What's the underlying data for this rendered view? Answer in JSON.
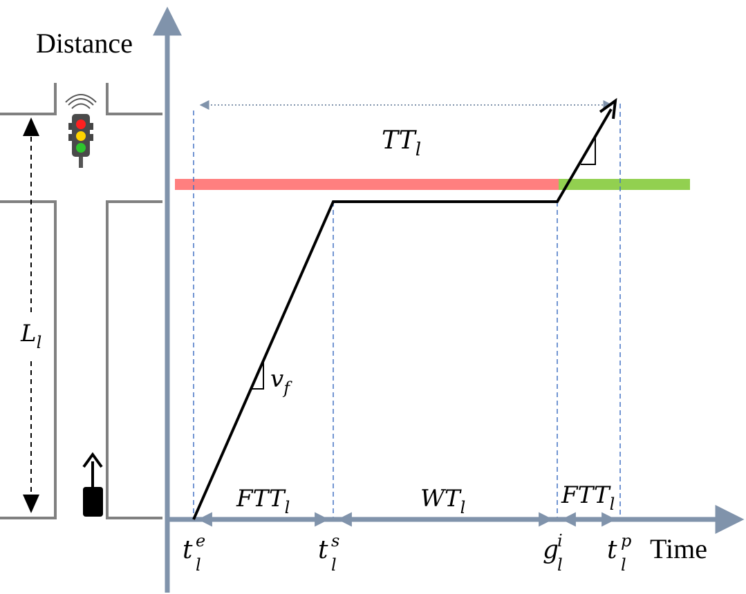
{
  "axes": {
    "y_label": "Distance",
    "x_label": "Time",
    "axis_color": "#8093AB"
  },
  "colors": {
    "red_phase": "#FF7F7F",
    "green_phase": "#92D050",
    "trajectory": "#000000",
    "guide": "#4472C4",
    "road": "#808080"
  },
  "labels": {
    "travel_time": {
      "base": "TT",
      "sub": "l"
    },
    "free_travel_time_1": {
      "base": "FTT",
      "sub": "l"
    },
    "wait_time": {
      "base": "WT",
      "sub": "l"
    },
    "free_travel_time_2": {
      "base": "FTT",
      "sub": "l"
    },
    "free_speed": {
      "base": "v",
      "sub": "f"
    },
    "link_length": {
      "base": "L",
      "sub": "l"
    }
  },
  "ticks": [
    {
      "base": "t",
      "sup": "e",
      "sub": "l"
    },
    {
      "base": "t",
      "sup": "s",
      "sub": "l"
    },
    {
      "base": "g",
      "sup": "i",
      "sub": "l"
    },
    {
      "base": "t",
      "sup": "p",
      "sub": "l"
    }
  ],
  "icons": {
    "signal": "traffic-light-icon",
    "vehicle": "vehicle-icon"
  }
}
